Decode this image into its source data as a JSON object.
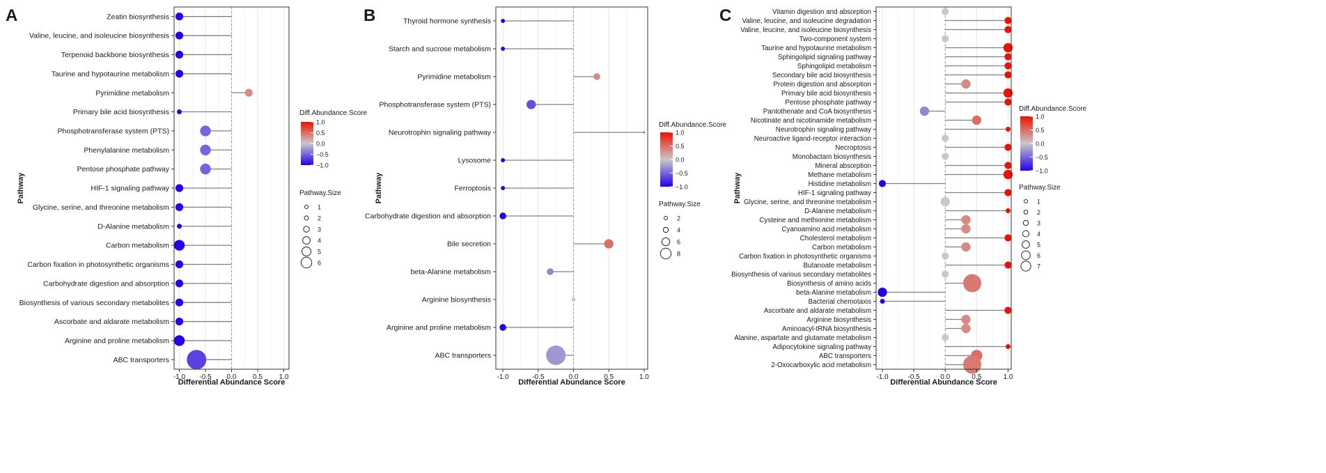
{
  "figure": {
    "panel_letters": [
      "A",
      "B",
      "C"
    ],
    "xlabel": "Differential Abundance Score",
    "ylabel": "Pathway",
    "colorbar_title": "Diff.Abundance.Score",
    "size_title": "Pathway.Size",
    "colors": {
      "low": "#2200ee",
      "mid": "#c8c8c8",
      "high": "#ee1100",
      "grid": "#e6e6e6",
      "segment": "#808080",
      "panel_border": "#333333"
    }
  },
  "chart_data": [
    {
      "type": "lollipop",
      "panel": "A",
      "title": "",
      "xlabel": "Differential Abundance Score",
      "ylabel": "Pathway",
      "xlim": [
        -1.1,
        1.1
      ],
      "x_ticks": [
        -1.0,
        -0.5,
        0.0,
        0.5,
        1.0
      ],
      "x_tick_labels": [
        "-1.0",
        "-0.5",
        "0.0",
        "0.5",
        "1.0"
      ],
      "colorbar": {
        "title": "Diff.Abundance.Score",
        "ticks": [
          1.0,
          0.5,
          0.0,
          -0.5,
          -1.0
        ],
        "tick_labels": [
          "1.0",
          "0.5",
          "0.0",
          "−0.5",
          "−1.0"
        ]
      },
      "size_legend": {
        "title": "Pathway.Size",
        "levels": [
          1,
          2,
          3,
          4,
          5,
          6
        ],
        "labels": [
          "1",
          "2",
          "3",
          "4",
          "5",
          "6"
        ]
      },
      "categories": [
        "Zeatin biosynthesis",
        "Valine, leucine, and isoleucine biosynthesis",
        "Terpenoid backbone biosynthesis",
        "Taurine and hypotaurine metabolism",
        "Pyrimidine metabolism",
        "Primary bile acid biosynthesis",
        "Phosphotransferase system (PTS)",
        "Phenylalanine metabolism",
        "Pentose phosphate pathway",
        "HIF-1 signaling pathway",
        "Glycine, serine, and threonine metabolism",
        "D-Alanine metabolism",
        "Carbon metabolism",
        "Carbon fixation in photosynthetic organisms",
        "Carbohydrate digestion and absorption",
        "Biosynthesis of various secondary metabolites",
        "Ascorbate and aldarate metabolism",
        "Arginine and proline metabolism",
        "ABC transporters"
      ],
      "values": [
        -1.0,
        -1.0,
        -1.0,
        -1.0,
        0.33,
        -1.0,
        -0.5,
        -0.5,
        -0.5,
        -1.0,
        -1.0,
        -1.0,
        -1.0,
        -1.0,
        -1.0,
        -1.0,
        -1.0,
        -1.0,
        -0.67
      ],
      "sizes": [
        2,
        2,
        2,
        2,
        2,
        1,
        3,
        3,
        3,
        2,
        2,
        1,
        3,
        2,
        2,
        2,
        2,
        3,
        6
      ]
    },
    {
      "type": "lollipop",
      "panel": "B",
      "title": "",
      "xlabel": "Differential Abundance Score",
      "ylabel": "Pathway",
      "xlim": [
        -1.1,
        1.05
      ],
      "x_ticks": [
        -1.0,
        -0.5,
        0.0,
        0.5,
        1.0
      ],
      "x_tick_labels": [
        "-1.0",
        "-0.5",
        "0.0",
        "0.5",
        "1.0"
      ],
      "colorbar": {
        "title": "Diff.Abundance.Score",
        "ticks": [
          1.0,
          0.5,
          0.0,
          -0.5,
          -1.0
        ],
        "tick_labels": [
          "1.0",
          "0.5",
          "0.0",
          "−0.5",
          "−1.0"
        ]
      },
      "size_legend": {
        "title": "Pathway.Size",
        "levels": [
          2,
          4,
          6,
          8
        ],
        "labels": [
          "2",
          "4",
          "6",
          "8"
        ]
      },
      "categories": [
        "Thyroid hormone synthesis",
        "Starch and sucrose metabolism",
        "Pyrimidine metabolism",
        "Phosphotransferase system (PTS)",
        "Neurotrophin signaling pathway",
        "Lysosome",
        "Ferroptosis",
        "Carbohydrate digestion and absorption",
        "Bile secretion",
        "beta-Alanine metabolism",
        "Arginine biosynthesis",
        "Arginine and proline metabolism",
        "ABC transporters"
      ],
      "values": [
        -1.0,
        -1.0,
        0.33,
        -0.6,
        1.0,
        -1.0,
        -1.0,
        -1.0,
        0.5,
        -0.33,
        0.0,
        -1.0,
        -0.25
      ],
      "sizes": [
        2,
        2,
        3,
        4,
        1,
        2,
        2,
        3,
        4,
        3,
        2,
        3,
        8
      ]
    },
    {
      "type": "lollipop",
      "panel": "C",
      "title": "",
      "xlabel": "Differential Abundance Score",
      "ylabel": "Pathway",
      "xlim": [
        -1.1,
        1.05
      ],
      "x_ticks": [
        -1.0,
        -0.5,
        0.0,
        0.5,
        1.0
      ],
      "x_tick_labels": [
        "-1.0",
        "-0.5",
        "0.0",
        "0.5",
        "1.0"
      ],
      "colorbar": {
        "title": "Diff.Abundance.Score",
        "ticks": [
          1.0,
          0.5,
          0.0,
          -0.5,
          -1.0
        ],
        "tick_labels": [
          "1.0",
          "0.5",
          "0.0",
          "−0.5",
          "−1.0"
        ]
      },
      "size_legend": {
        "title": "Pathway.Size",
        "levels": [
          1,
          2,
          3,
          4,
          5,
          6,
          7
        ],
        "labels": [
          "1",
          "2",
          "3",
          "4",
          "5",
          "6",
          "7"
        ]
      },
      "categories": [
        "Vitamin digestion and absorption",
        "Valine, leucine, and isoleucine degradation",
        "Valine, leucine, and isoleucine biosynthesis",
        "Two-component system",
        "Taurine and hypotaurine metabolism",
        "Sphingolipid signaling pathway",
        "Sphingolipid metabolism",
        "Secondary bile acid biosynthesis",
        "Protein digestion and absorption",
        "Primary bile acid biosynthesis",
        "Pentose phosphate pathway",
        "Pantothenate and CoA biosynthesis",
        "Nicotinate and nicotinamide metabolism",
        "Neurotrophin signaling pathway",
        "Neuroactive ligand-receptor interaction",
        "Necroptosis",
        "Monobactam biosynthesis",
        "Mineral absorption",
        "Methane metabolism",
        "Histidine metabolism",
        "HIF-1 signaling pathway",
        "Glycine, serine, and threonine metabolism",
        "D-Alanine metabolism",
        "Cysteine and methionine metabolism",
        "Cyanoamino acid metabolism",
        "Cholesterol metabolism",
        "Carbon metabolism",
        "Carbon fixation in photosynthetic organisms",
        "Butanoate metabolism",
        "Biosynthesis of various secondary metabolites",
        "Biosynthesis of amino acids",
        "beta-Alanine metabolism",
        "Bacterial chemotaxis",
        "Ascorbate and aldarate metabolism",
        "Arginine biosynthesis",
        "Aminoacyl-tRNA biosynthesis",
        "Alanine, aspartate and glutamate metabolism",
        "Adipocytokine signaling pathway",
        "ABC transporters",
        "2-Oxocarboxylic acid metabolism"
      ],
      "values": [
        0.0,
        1.0,
        1.0,
        0.0,
        1.0,
        1.0,
        1.0,
        1.0,
        0.33,
        1.0,
        1.0,
        -0.33,
        0.5,
        1.0,
        0.0,
        1.0,
        0.0,
        1.0,
        1.0,
        -1.0,
        1.0,
        0.0,
        1.0,
        0.33,
        0.33,
        1.0,
        0.33,
        0.0,
        1.0,
        0.0,
        0.43,
        -1.0,
        -1.0,
        1.0,
        0.33,
        0.33,
        0.0,
        1.0,
        0.5,
        0.43
      ],
      "sizes": [
        2,
        2,
        2,
        2,
        3,
        2,
        2,
        2,
        3,
        3,
        2,
        3,
        3,
        1,
        2,
        2,
        2,
        2,
        3,
        2,
        2,
        3,
        1,
        3,
        3,
        2,
        3,
        2,
        2,
        2,
        7,
        3,
        1,
        2,
        3,
        3,
        2,
        1,
        4,
        7
      ]
    }
  ]
}
